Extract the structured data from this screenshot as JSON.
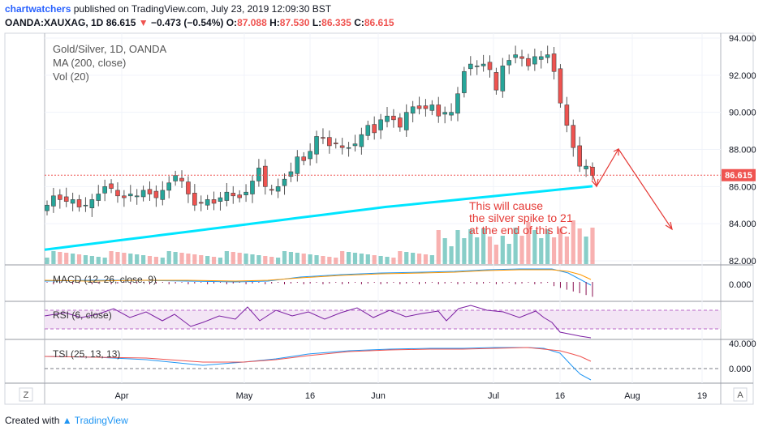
{
  "header": {
    "author": "chartwatchers",
    "published": "published on TradingView.com, July 23, 2019 12:09:30 BST",
    "symbol": "OANDA:XAUXAG, 1D",
    "last": "86.615",
    "change": "−0.473 (−0.54%)",
    "o_label": "O:",
    "o": "87.088",
    "h_label": "H:",
    "h": "87.530",
    "l_label": "L:",
    "l": "86.335",
    "c_label": "C:",
    "c": "86.615"
  },
  "legend": {
    "title": "Gold/Silver, 1D, OANDA",
    "ma": "MA (200, close)",
    "vol": "Vol (20)"
  },
  "annotation": {
    "line1": "This will cause",
    "line2": "the silver spike to 21",
    "line3": "at the end of this IC."
  },
  "panes": {
    "macd": "MACD (12, 26, close, 9)",
    "rsi": "RSI (6, close)",
    "tsi": "TSI (25, 13, 13)"
  },
  "price_label": "86.615",
  "footer": {
    "created": "Created with",
    "brand": "TradingView"
  },
  "corner": {
    "left": "Z",
    "right": "A"
  },
  "colors": {
    "up": "#26a69a",
    "down": "#ef5350",
    "ma": "#00e5ff",
    "rsi": "#7b1fa2",
    "arrow": "#e53935"
  },
  "chart_data": {
    "type": "candlestick",
    "ylim": [
      82,
      94
    ],
    "yticks": [
      "94.000",
      "92.000",
      "90.000",
      "88.000",
      "86.000",
      "84.000",
      "82.000"
    ],
    "xticks": [
      "Apr",
      "May",
      "16",
      "Jun",
      "Jul",
      "16",
      "Aug",
      "19"
    ],
    "closes": [
      85.0,
      85.5,
      85.3,
      85.2,
      85.3,
      84.9,
      85.0,
      85.3,
      85.6,
      86.0,
      85.9,
      85.5,
      85.4,
      85.6,
      85.5,
      85.8,
      85.6,
      85.4,
      85.8,
      86.2,
      86.6,
      86.3,
      85.6,
      85.0,
      85.1,
      85.3,
      85.1,
      85.4,
      85.7,
      85.5,
      85.4,
      85.7,
      86.3,
      87.0,
      86.0,
      85.8,
      86.0,
      86.4,
      86.8,
      87.6,
      87.4,
      87.9,
      88.7,
      88.6,
      88.2,
      88.3,
      88.1,
      88.1,
      88.3,
      88.8,
      89.3,
      88.9,
      89.6,
      89.8,
      89.6,
      89.2,
      90.0,
      90.3,
      90.2,
      90.2,
      90.4,
      89.8,
      90.0,
      90.0,
      91.0,
      92.2,
      92.6,
      92.5,
      92.6,
      92.3,
      91.2,
      92.5,
      92.8,
      93.1,
      92.9,
      92.5,
      93.0,
      93.0,
      93.1,
      92.2,
      90.5,
      89.3,
      88.1,
      87.1,
      87.1,
      86.6
    ],
    "ma200": [
      82.6,
      82.7,
      82.8,
      82.9,
      83.0,
      83.1,
      83.2,
      83.3,
      83.4,
      83.5,
      83.6,
      83.7,
      83.8,
      83.9,
      84.0,
      84.1,
      84.2,
      84.3,
      84.4,
      84.5,
      84.6,
      84.7,
      84.8,
      84.9,
      84.98,
      85.06,
      85.14,
      85.22,
      85.3,
      85.38,
      85.46,
      85.54,
      85.62,
      85.7,
      85.78,
      85.86,
      85.94,
      86.02
    ],
    "last": 86.615
  }
}
